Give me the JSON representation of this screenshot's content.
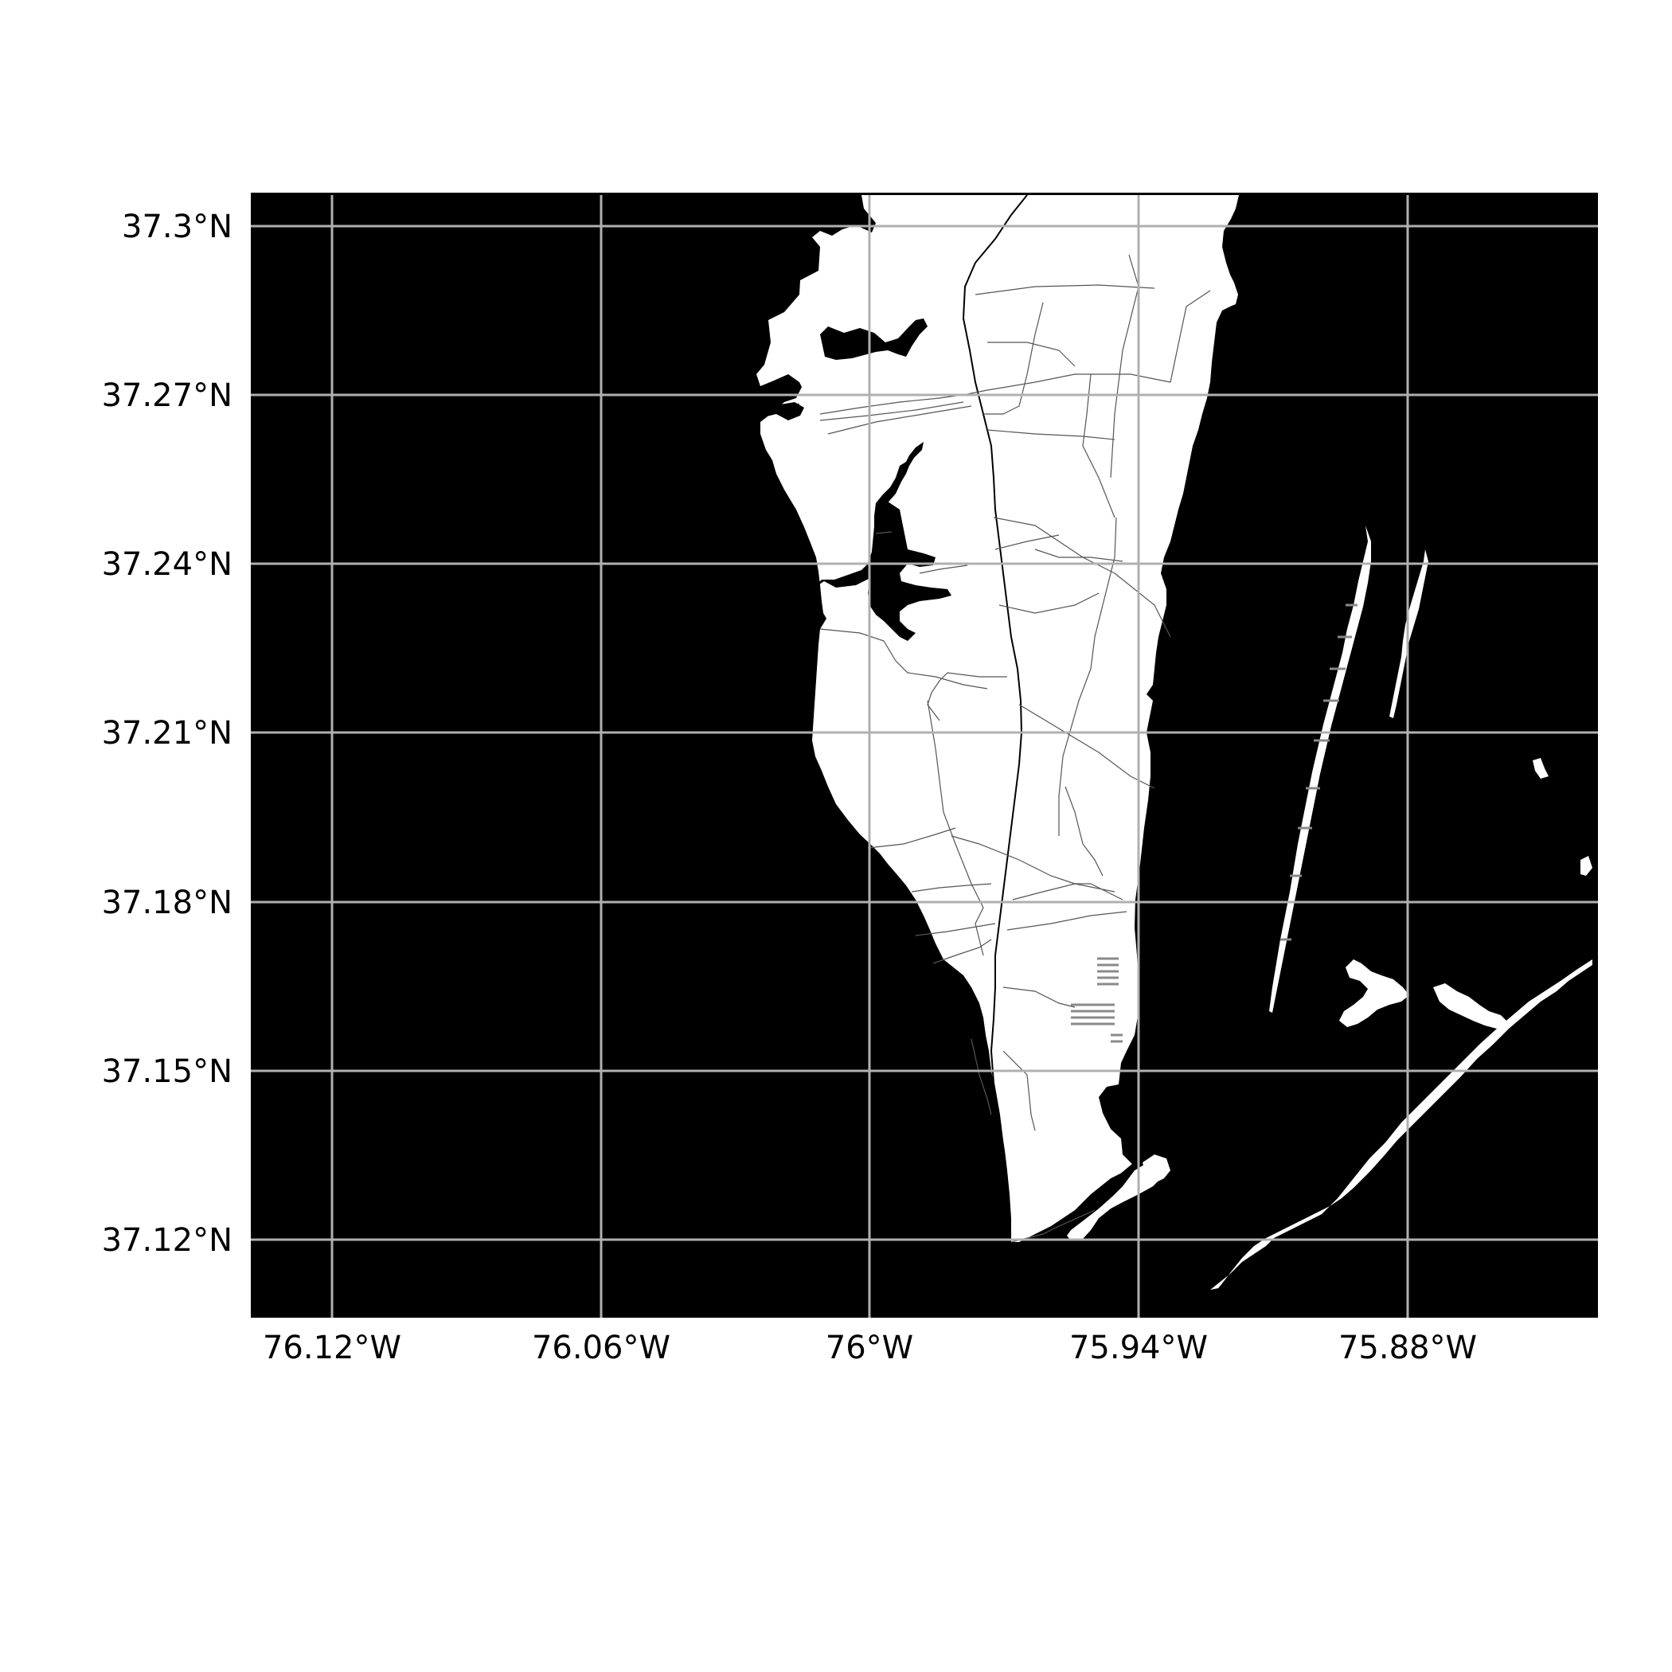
{
  "map": {
    "background_color": "#000000",
    "land_color": "#ffffff",
    "grid_color": "#b0b0b0",
    "lat_labels": [
      "37.3°N",
      "37.27°N",
      "37.24°N",
      "37.21°N",
      "37.18°N",
      "37.15°N",
      "37.12°N"
    ],
    "lon_labels": [
      "76.12°W",
      "76.06°W",
      "76°W",
      "75.94°W",
      "75.88°W"
    ],
    "lat_values": [
      37.3,
      37.27,
      37.24,
      37.21,
      37.18,
      37.15,
      37.12
    ],
    "lon_values": [
      -76.12,
      -76.06,
      -76.0,
      -75.94,
      -75.88
    ],
    "extent": {
      "lon_min": -76.138,
      "lon_max": -75.838,
      "lat_min": 37.106,
      "lat_max": 37.306
    }
  }
}
